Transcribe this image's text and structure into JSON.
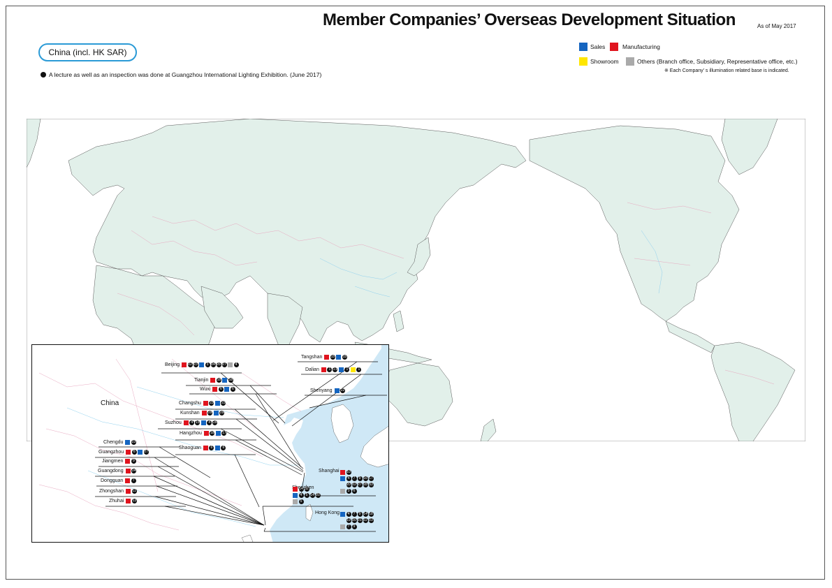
{
  "title": "Member Companies’ Overseas Development Situation",
  "as_of": "As of May 2017",
  "region": "China (incl. HK SAR)",
  "note": "A lecture as well as an inspection was done at Guangzhou International Lighting Exhibition. (June 2017)",
  "legend": {
    "sales": {
      "label": "Sales",
      "color": "#1565c0"
    },
    "manufacturing": {
      "label": "Manufacturing",
      "color": "#e0141e"
    },
    "showroom": {
      "label": "Showroom",
      "color": "#ffe600"
    },
    "others": {
      "label": "Others (Branch office, Subsidiary, Representative office, etc.)",
      "color": "#aaaaaa"
    }
  },
  "footnote": "※ Each Company’ s illumination related base is indicated.",
  "map": {
    "land_color": "#e2f0ea",
    "sea_color": "#cfe8f6",
    "border_color": "#e8a8c0",
    "river_color": "#8fd0ee",
    "inset_label": "China"
  },
  "cities": [
    {
      "name": "Beijing",
      "entries": [
        {
          "t": "manufacturing",
          "n": [
            "22",
            "23"
          ]
        },
        {
          "t": "sales",
          "n": [
            "3",
            "24",
            "26",
            "27"
          ]
        },
        {
          "t": "others",
          "n": [
            "4"
          ]
        }
      ]
    },
    {
      "name": "Tianjin",
      "entries": [
        {
          "t": "manufacturing",
          "n": [
            "18"
          ]
        },
        {
          "t": "sales",
          "n": [
            "18"
          ]
        }
      ]
    },
    {
      "name": "Wuxi",
      "entries": [
        {
          "t": "manufacturing",
          "n": [
            "6"
          ]
        },
        {
          "t": "sales",
          "n": [
            "6"
          ]
        }
      ]
    },
    {
      "name": "Changshu",
      "entries": [
        {
          "t": "manufacturing",
          "n": [
            "23"
          ]
        },
        {
          "t": "sales",
          "n": [
            "23"
          ]
        }
      ]
    },
    {
      "name": "Kunshan",
      "entries": [
        {
          "t": "manufacturing",
          "n": [
            "29"
          ]
        },
        {
          "t": "sales",
          "n": [
            "29"
          ]
        }
      ]
    },
    {
      "name": "Suzhou",
      "entries": [
        {
          "t": "manufacturing",
          "n": [
            "4",
            "15"
          ]
        },
        {
          "t": "sales",
          "n": [
            "4",
            "26"
          ]
        }
      ]
    },
    {
      "name": "Hangzhou",
      "entries": [
        {
          "t": "manufacturing",
          "n": [
            "18"
          ]
        },
        {
          "t": "sales",
          "n": [
            "17"
          ]
        }
      ]
    },
    {
      "name": "Shaoguan",
      "entries": [
        {
          "t": "manufacturing",
          "n": [
            "6"
          ]
        },
        {
          "t": "sales",
          "n": [
            "6"
          ]
        }
      ]
    },
    {
      "name": "Chengdu",
      "entries": [
        {
          "t": "sales",
          "n": [
            "23"
          ]
        }
      ]
    },
    {
      "name": "Guangzhou",
      "entries": [
        {
          "t": "manufacturing",
          "n": [
            "6"
          ]
        },
        {
          "t": "sales",
          "n": [
            "27"
          ]
        }
      ]
    },
    {
      "name": "Jiangmen",
      "entries": [
        {
          "t": "manufacturing",
          "n": [
            "9"
          ]
        }
      ]
    },
    {
      "name": "Guangdong",
      "entries": [
        {
          "t": "manufacturing",
          "n": [
            "24"
          ]
        }
      ]
    },
    {
      "name": "Dongguan",
      "entries": [
        {
          "t": "manufacturing",
          "n": [
            "7"
          ]
        }
      ]
    },
    {
      "name": "Zhongshan",
      "entries": [
        {
          "t": "manufacturing",
          "n": [
            "11"
          ]
        }
      ]
    },
    {
      "name": "Zhuhai",
      "entries": [
        {
          "t": "manufacturing",
          "n": [
            "13"
          ]
        }
      ]
    },
    {
      "name": "Tangshan",
      "entries": [
        {
          "t": "manufacturing",
          "n": [
            "15"
          ]
        },
        {
          "t": "sales",
          "n": [
            "15"
          ]
        }
      ]
    },
    {
      "name": "Dalian",
      "entries": [
        {
          "t": "manufacturing",
          "n": [
            "1",
            "21"
          ]
        },
        {
          "t": "sales",
          "n": [
            "1"
          ]
        },
        {
          "t": "showroom",
          "n": [
            "1"
          ]
        }
      ]
    },
    {
      "name": "Shenyang",
      "entries": [
        {
          "t": "sales",
          "n": [
            "22"
          ]
        }
      ]
    }
  ],
  "shanghai": {
    "name": "Shanghai",
    "rows": [
      {
        "t": "manufacturing",
        "n": [
          "10"
        ]
      },
      {
        "t": "sales",
        "n": [
          "4",
          "7",
          "9",
          "16",
          "17"
        ]
      },
      {
        "t": "",
        "n": [
          "20",
          "22",
          "27",
          "28",
          "33"
        ]
      },
      {
        "t": "others",
        "n": [
          "3",
          "6"
        ]
      }
    ]
  },
  "shenzhen": {
    "name": "Shenzhen",
    "rows": [
      {
        "t": "manufacturing",
        "n": [
          "14",
          "32"
        ]
      },
      {
        "t": "sales",
        "n": [
          "4",
          "5",
          "14",
          "20"
        ]
      },
      {
        "t": "others",
        "n": [
          "5"
        ]
      }
    ]
  },
  "hongkong": {
    "name": "Hong Kong",
    "rows": [
      {
        "t": "sales",
        "n": [
          "4",
          "7",
          "9",
          "14",
          "18"
        ]
      },
      {
        "t": "",
        "n": [
          "19",
          "20",
          "21",
          "22",
          "23"
        ]
      },
      {
        "t": "others",
        "n": [
          "7",
          "9"
        ]
      }
    ]
  }
}
